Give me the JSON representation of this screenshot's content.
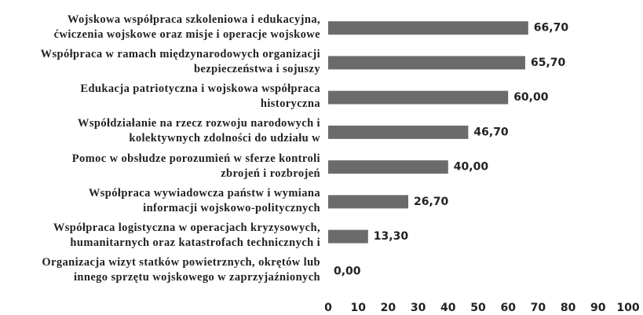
{
  "chart_data": {
    "type": "bar",
    "orientation": "horizontal",
    "categories": [
      "Wojskowa współpraca szkoleniowa i edukacyjna,\nćwiczenia wojskowe oraz misje i operacje wojskowe",
      "Współpraca w ramach międzynarodowych organizacji\nbezpieczeństwa i sojuszy",
      "Edukacja patriotyczna i wojskowa współpraca\nhistoryczna",
      "Współdziałanie na rzecz rozwoju narodowych i\nkolektywnych zdolności do udziału w",
      "Pomoc w obsłudze porozumień w sferze kontroli\nzbrojeń i rozbrojeń",
      "Współpraca wywiadowcza państw i wymiana\ninformacji wojskowo-politycznych",
      "Współpraca logistyczna w operacjach kryzysowych,\nhumanitarnych oraz katastrofach technicznych i",
      "Organizacja wizyt statków powietrznych, okrętów lub\ninnego sprzętu wojskowego w zaprzyjaźnionych"
    ],
    "values": [
      66.7,
      65.7,
      60,
      46.7,
      40,
      26.7,
      13.3,
      0
    ],
    "value_labels": [
      "66,70",
      "65,70",
      "60,00",
      "46,70",
      "40,00",
      "26,70",
      "13,30",
      "0,00"
    ],
    "color": "#6b6b6b",
    "xlim": [
      0,
      100
    ],
    "xticks": [
      0,
      10,
      20,
      30,
      40,
      50,
      60,
      70,
      80,
      90,
      100
    ]
  }
}
